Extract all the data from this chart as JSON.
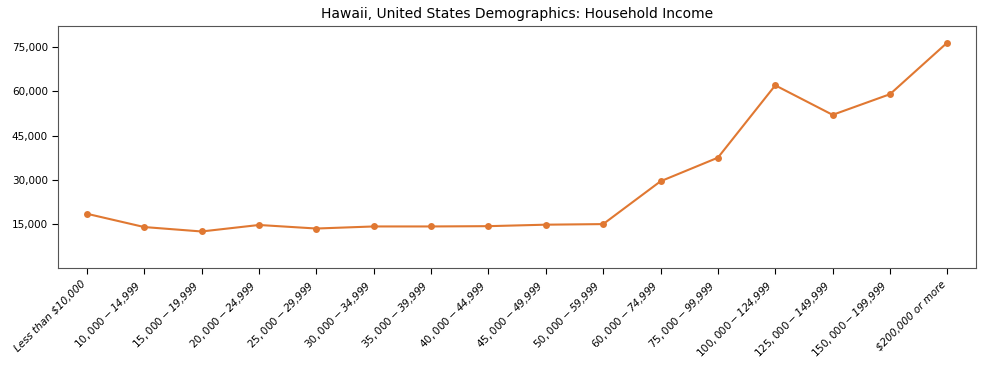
{
  "title": "Hawaii, United States Demographics: Household Income",
  "categories": [
    "Less than $10,000",
    "$10,000 - $14,999",
    "$15,000 - $19,999",
    "$20,000 - $24,999",
    "$25,000 - $29,999",
    "$30,000 - $34,999",
    "$35,000 - $39,999",
    "$40,000 - $44,999",
    "$45,000 - $49,999",
    "$50,000 - $59,999",
    "$60,000 - $74,999",
    "$75,000 - $99,999",
    "$100,000 - $124,999",
    "$125,000 - $149,999",
    "$150,000 - $199,999",
    "$200,000 or more"
  ],
  "values": [
    18500,
    14000,
    12500,
    14700,
    13500,
    14200,
    14200,
    14300,
    14800,
    15000,
    29500,
    37500,
    62000,
    52000,
    59000,
    76500
  ],
  "line_color": "#E07832",
  "marker_color": "#E07832",
  "marker_size": 5,
  "line_width": 1.5,
  "ylim": [
    0,
    82000
  ],
  "yticks": [
    15000,
    30000,
    45000,
    60000,
    75000
  ],
  "ytick_labels": [
    "15,000",
    "30,000",
    "45,000",
    "60,000",
    "75,000"
  ],
  "background_color": "#ffffff",
  "title_fontsize": 10,
  "tick_fontsize": 7.5
}
